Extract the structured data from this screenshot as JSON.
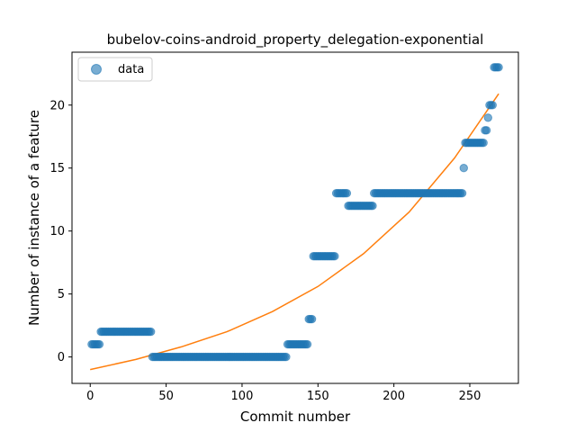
{
  "chart_data": {
    "type": "scatter",
    "title": "bubelov-coins-android_property_delegation-exponential",
    "xlabel": "Commit number",
    "ylabel": "Number of instance of a feature",
    "xlim": [
      -12,
      282
    ],
    "ylim": [
      -2.1,
      24.2
    ],
    "xticks": [
      0,
      50,
      100,
      150,
      200,
      250
    ],
    "yticks": [
      0,
      5,
      10,
      15,
      20
    ],
    "legend_position": "top-left",
    "colors": {
      "data": "#1f77b4",
      "fit": "#ff7f0e"
    },
    "series": [
      {
        "name": "data",
        "kind": "scatter",
        "segments": [
          {
            "x_start": 1,
            "x_end": 6,
            "y": 1
          },
          {
            "x_start": 7,
            "x_end": 40,
            "y": 2
          },
          {
            "x_start": 41,
            "x_end": 129,
            "y": 0
          },
          {
            "x_start": 130,
            "x_end": 143,
            "y": 1
          },
          {
            "x_start": 144,
            "x_end": 146,
            "y": 3
          },
          {
            "x_start": 147,
            "x_end": 161,
            "y": 8
          },
          {
            "x_start": 162,
            "x_end": 169,
            "y": 13
          },
          {
            "x_start": 170,
            "x_end": 186,
            "y": 12
          },
          {
            "x_start": 187,
            "x_end": 245,
            "y": 13
          },
          {
            "x_start": 246,
            "x_end": 246,
            "y": 15
          },
          {
            "x_start": 247,
            "x_end": 259,
            "y": 17
          },
          {
            "x_start": 260,
            "x_end": 261,
            "y": 18
          },
          {
            "x_start": 262,
            "x_end": 262,
            "y": 19
          },
          {
            "x_start": 263,
            "x_end": 265,
            "y": 20
          },
          {
            "x_start": 266,
            "x_end": 269,
            "y": 23
          }
        ]
      },
      {
        "kind": "line",
        "x": [
          0,
          30,
          60,
          90,
          120,
          150,
          180,
          210,
          240,
          269
        ],
        "y": [
          -1.0,
          -0.2,
          0.8,
          2.0,
          3.6,
          5.6,
          8.2,
          11.5,
          15.8,
          20.9
        ]
      }
    ]
  }
}
